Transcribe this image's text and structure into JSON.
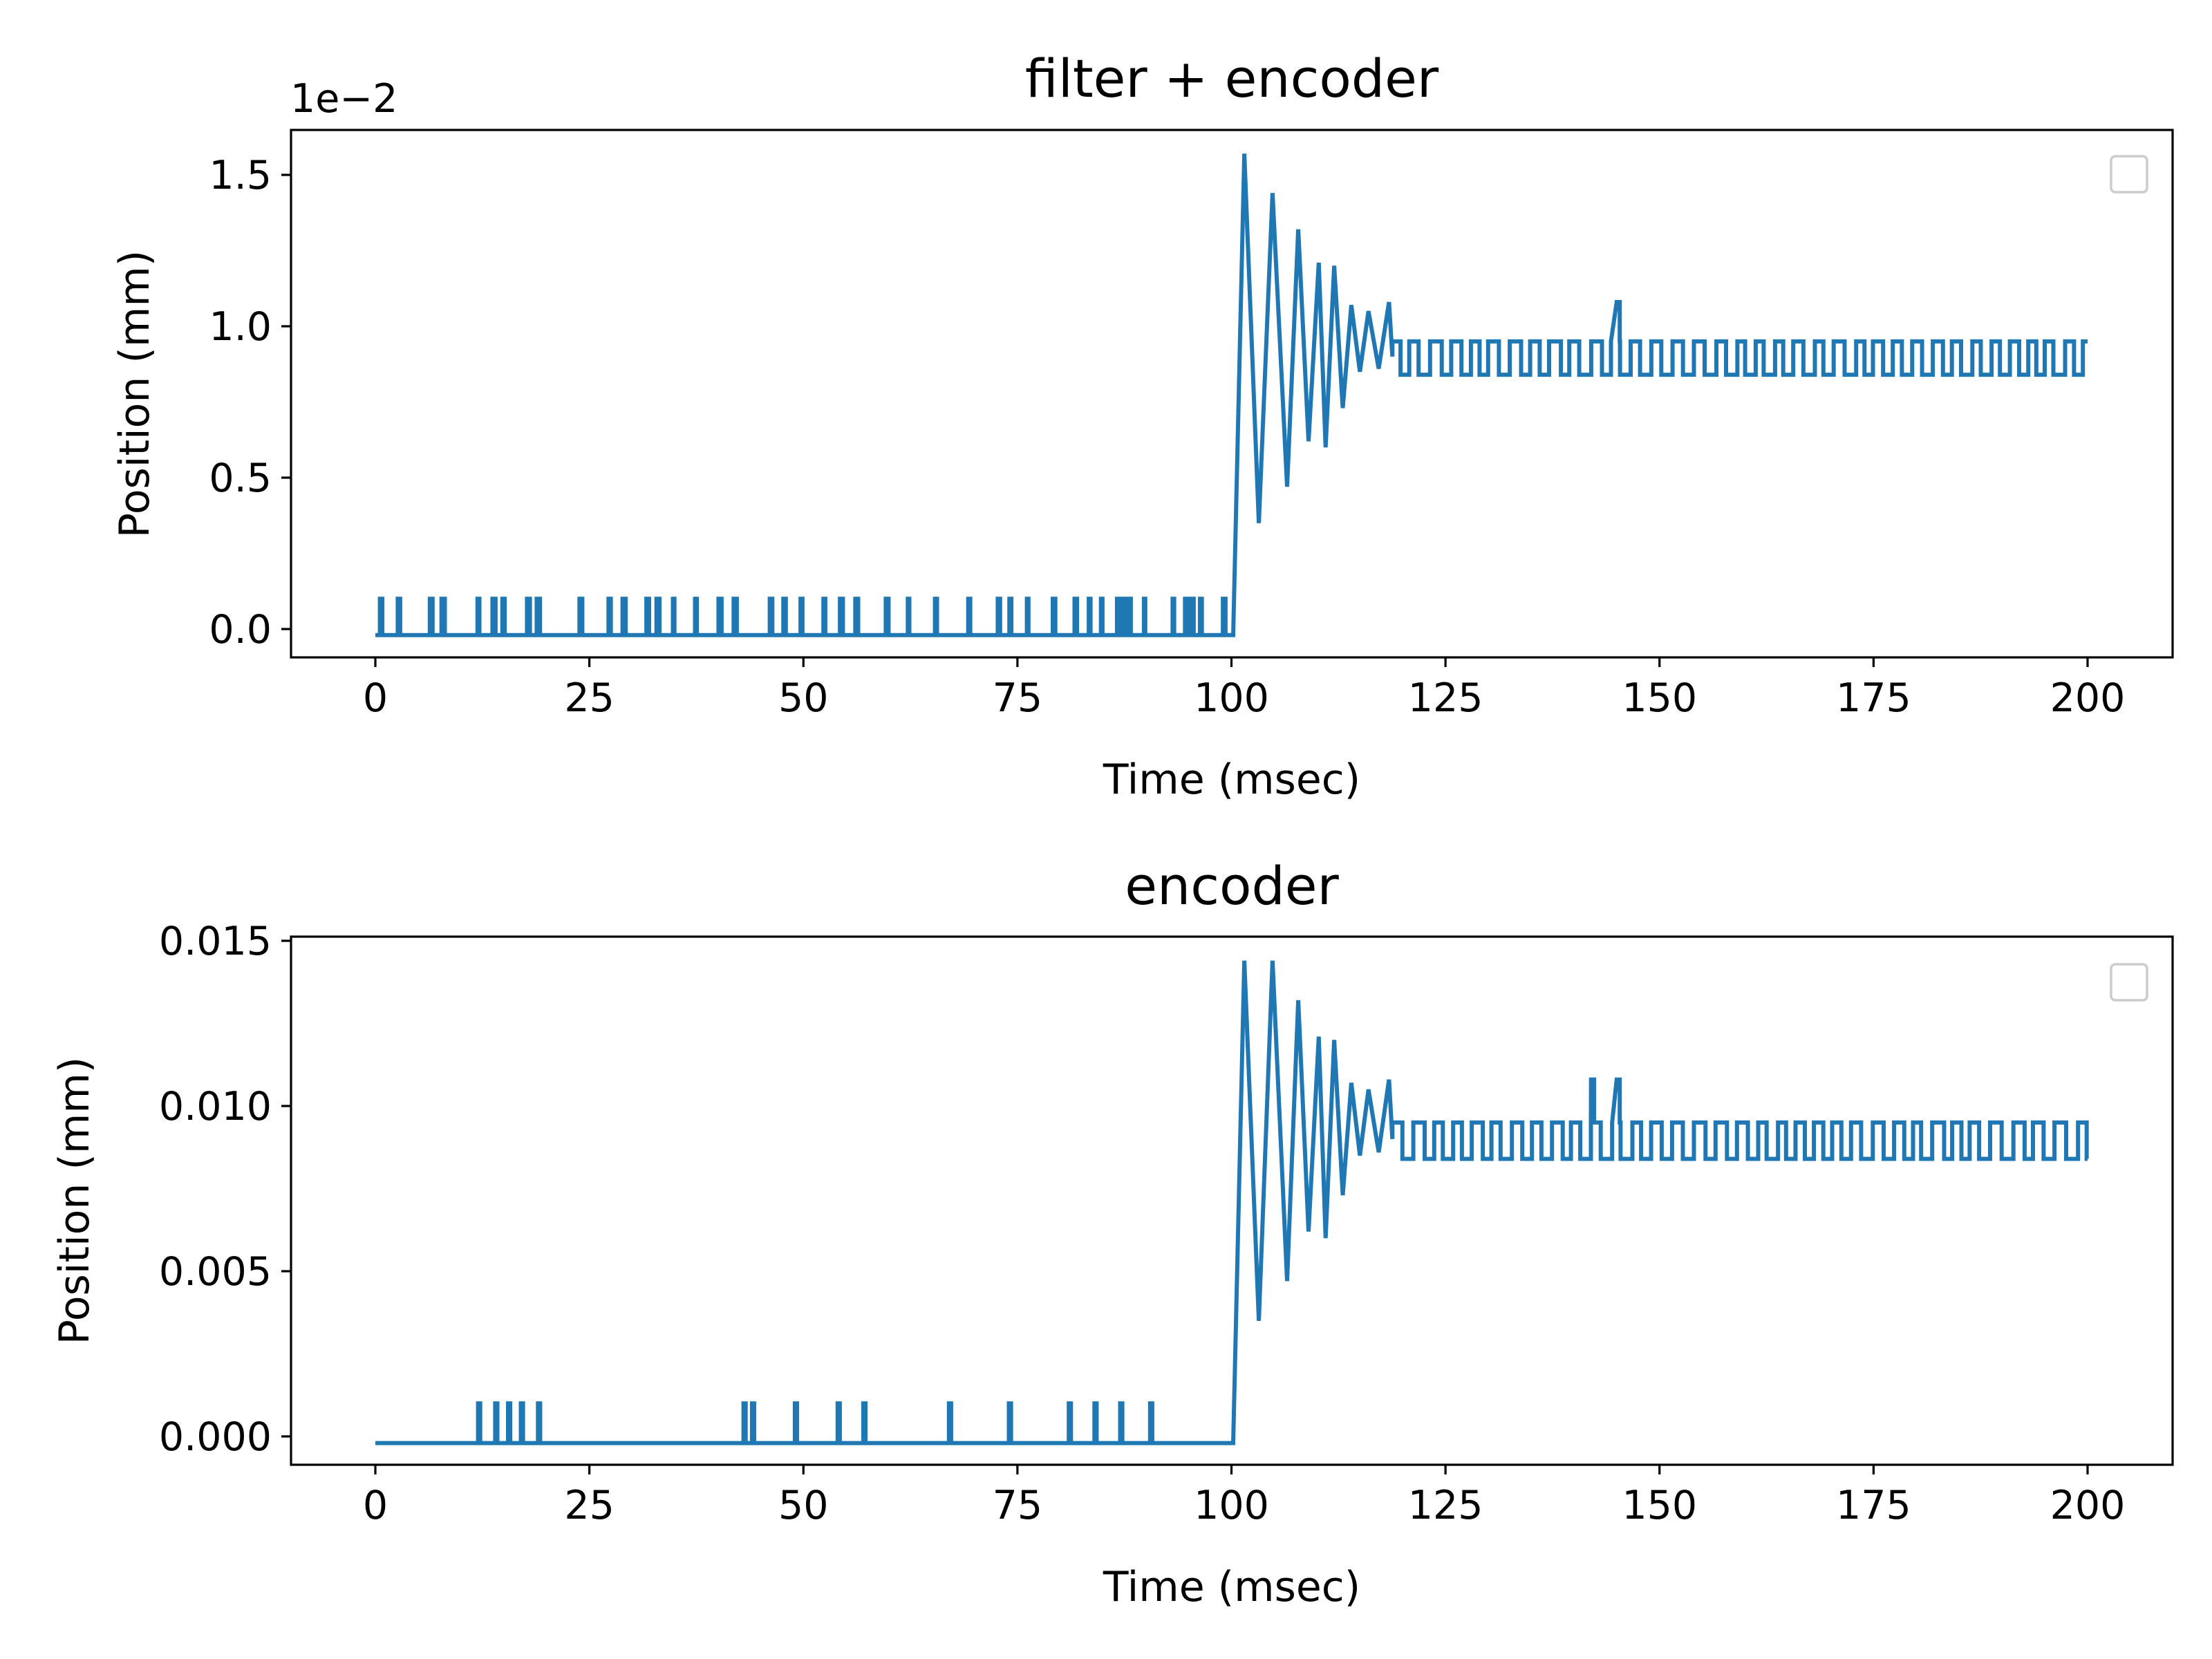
{
  "chart_data": [
    {
      "type": "line",
      "title": "filter + encoder",
      "xlabel": "Time (msec)",
      "ylabel": "Position (mm)",
      "y_offset_label": "1e−2",
      "xlim": [
        -24,
        210
      ],
      "ylim": [
        -0.001,
        0.0165
      ],
      "xticks": [
        0,
        25,
        50,
        75,
        100,
        125,
        150,
        175,
        200
      ],
      "xtick_labels": [
        "0",
        "25",
        "50",
        "75",
        "100",
        "125",
        "150",
        "175",
        "200"
      ],
      "yticks": [
        0.0,
        0.005,
        0.01,
        0.015
      ],
      "ytick_labels": [
        "0.0",
        "0.5",
        "1.0",
        "1.5"
      ],
      "grid": false,
      "legend": "top-right, empty",
      "series_color": "#1f77b4",
      "description_points": {
        "baseline": -0.0002,
        "noise_level": 0.001,
        "step_time": 100,
        "peaks": [
          [
            101.5,
            0.0157
          ],
          [
            104.8,
            0.0144
          ]
        ],
        "troughs": [
          [
            103.2,
            0.0035
          ],
          [
            106.5,
            0.0047
          ]
        ],
        "settle_high": 0.0095,
        "settle_low": 0.0084
      }
    },
    {
      "type": "line",
      "title": "encoder",
      "xlabel": "Time (msec)",
      "ylabel": "Position (mm)",
      "xlim": [
        -10,
        210
      ],
      "ylim": [
        -0.0008,
        0.0152
      ],
      "xticks": [
        0,
        25,
        50,
        75,
        100,
        125,
        150,
        175,
        200
      ],
      "xtick_labels": [
        "0",
        "25",
        "50",
        "75",
        "100",
        "125",
        "150",
        "175",
        "200"
      ],
      "yticks": [
        0.0,
        0.005,
        0.01,
        0.015
      ],
      "ytick_labels": [
        "0.000",
        "0.005",
        "0.010",
        "0.015"
      ],
      "grid": false,
      "legend": "top-right, empty",
      "series_color": "#1f77b4",
      "description_points": {
        "baseline": -0.0002,
        "spike_times": [
          12,
          14,
          15.5,
          17,
          19,
          43,
          44,
          49,
          54,
          57,
          67,
          74,
          81,
          84,
          87,
          90.5
        ],
        "spike_level": 0.001,
        "step_time": 100,
        "peaks": [
          [
            101.5,
            0.0144
          ],
          [
            104.8,
            0.0144
          ]
        ],
        "troughs": [
          [
            103.2,
            0.0035
          ],
          [
            106.5,
            0.0047
          ]
        ],
        "settle_high": 0.0095,
        "settle_low": 0.0084
      }
    }
  ]
}
